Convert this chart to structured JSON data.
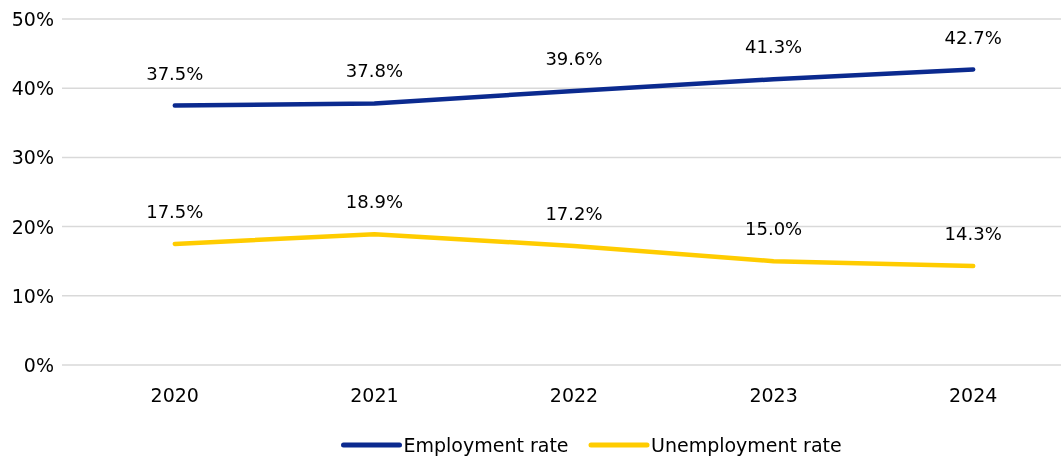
{
  "chart_data": {
    "type": "line",
    "categories": [
      "2020",
      "2021",
      "2022",
      "2023",
      "2024"
    ],
    "series": [
      {
        "name": "Employment rate",
        "color": "#0b2a8f",
        "values": [
          37.5,
          37.8,
          39.6,
          41.3,
          42.7
        ],
        "value_labels": [
          "37.5%",
          "37.8%",
          "39.6%",
          "41.3%",
          "42.7%"
        ]
      },
      {
        "name": "Unemployment rate",
        "color": "#ffcc00",
        "values": [
          17.5,
          18.9,
          17.2,
          15.0,
          14.3
        ],
        "value_labels": [
          "17.5%",
          "18.9%",
          "17.2%",
          "15.0%",
          "14.3%"
        ]
      }
    ],
    "ylim": [
      0,
      50
    ],
    "yticks": [
      {
        "value": 0,
        "label": "0%"
      },
      {
        "value": 10,
        "label": "10%"
      },
      {
        "value": 20,
        "label": "20%"
      },
      {
        "value": 30,
        "label": "30%"
      },
      {
        "value": 40,
        "label": "40%"
      },
      {
        "value": 50,
        "label": "50%"
      }
    ],
    "grid": "y",
    "legend": "bottom",
    "marker": "none",
    "line_style": "solid"
  }
}
